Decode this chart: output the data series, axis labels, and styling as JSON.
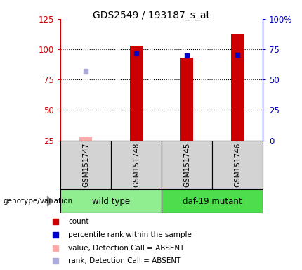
{
  "title": "GDS2549 / 193187_s_at",
  "samples": [
    "GSM151747",
    "GSM151748",
    "GSM151745",
    "GSM151746"
  ],
  "count_values": [
    27.5,
    103.0,
    93.0,
    113.0
  ],
  "rank_values": [
    57.0,
    71.5,
    70.0,
    70.5
  ],
  "count_absent": [
    true,
    false,
    false,
    false
  ],
  "rank_absent": [
    true,
    false,
    false,
    false
  ],
  "groups": [
    {
      "label": "wild type",
      "samples": [
        0,
        1
      ],
      "color": "#90ee90"
    },
    {
      "label": "daf-19 mutant",
      "samples": [
        2,
        3
      ],
      "color": "#4ddd4d"
    }
  ],
  "left_ylim": [
    25,
    125
  ],
  "right_ylim": [
    0,
    100
  ],
  "left_yticks": [
    25,
    50,
    75,
    100,
    125
  ],
  "right_yticks": [
    0,
    25,
    50,
    75,
    100
  ],
  "right_yticklabels": [
    "0",
    "25",
    "50",
    "75",
    "100%"
  ],
  "color_count_present": "#cc0000",
  "color_count_absent": "#ffaaaa",
  "color_rank_present": "#0000cc",
  "color_rank_absent": "#aaaadd",
  "bar_width": 0.25,
  "left_axis_color": "#cc0000",
  "right_axis_color": "#0000bb",
  "grid_dotted_at": [
    50,
    75,
    100
  ]
}
